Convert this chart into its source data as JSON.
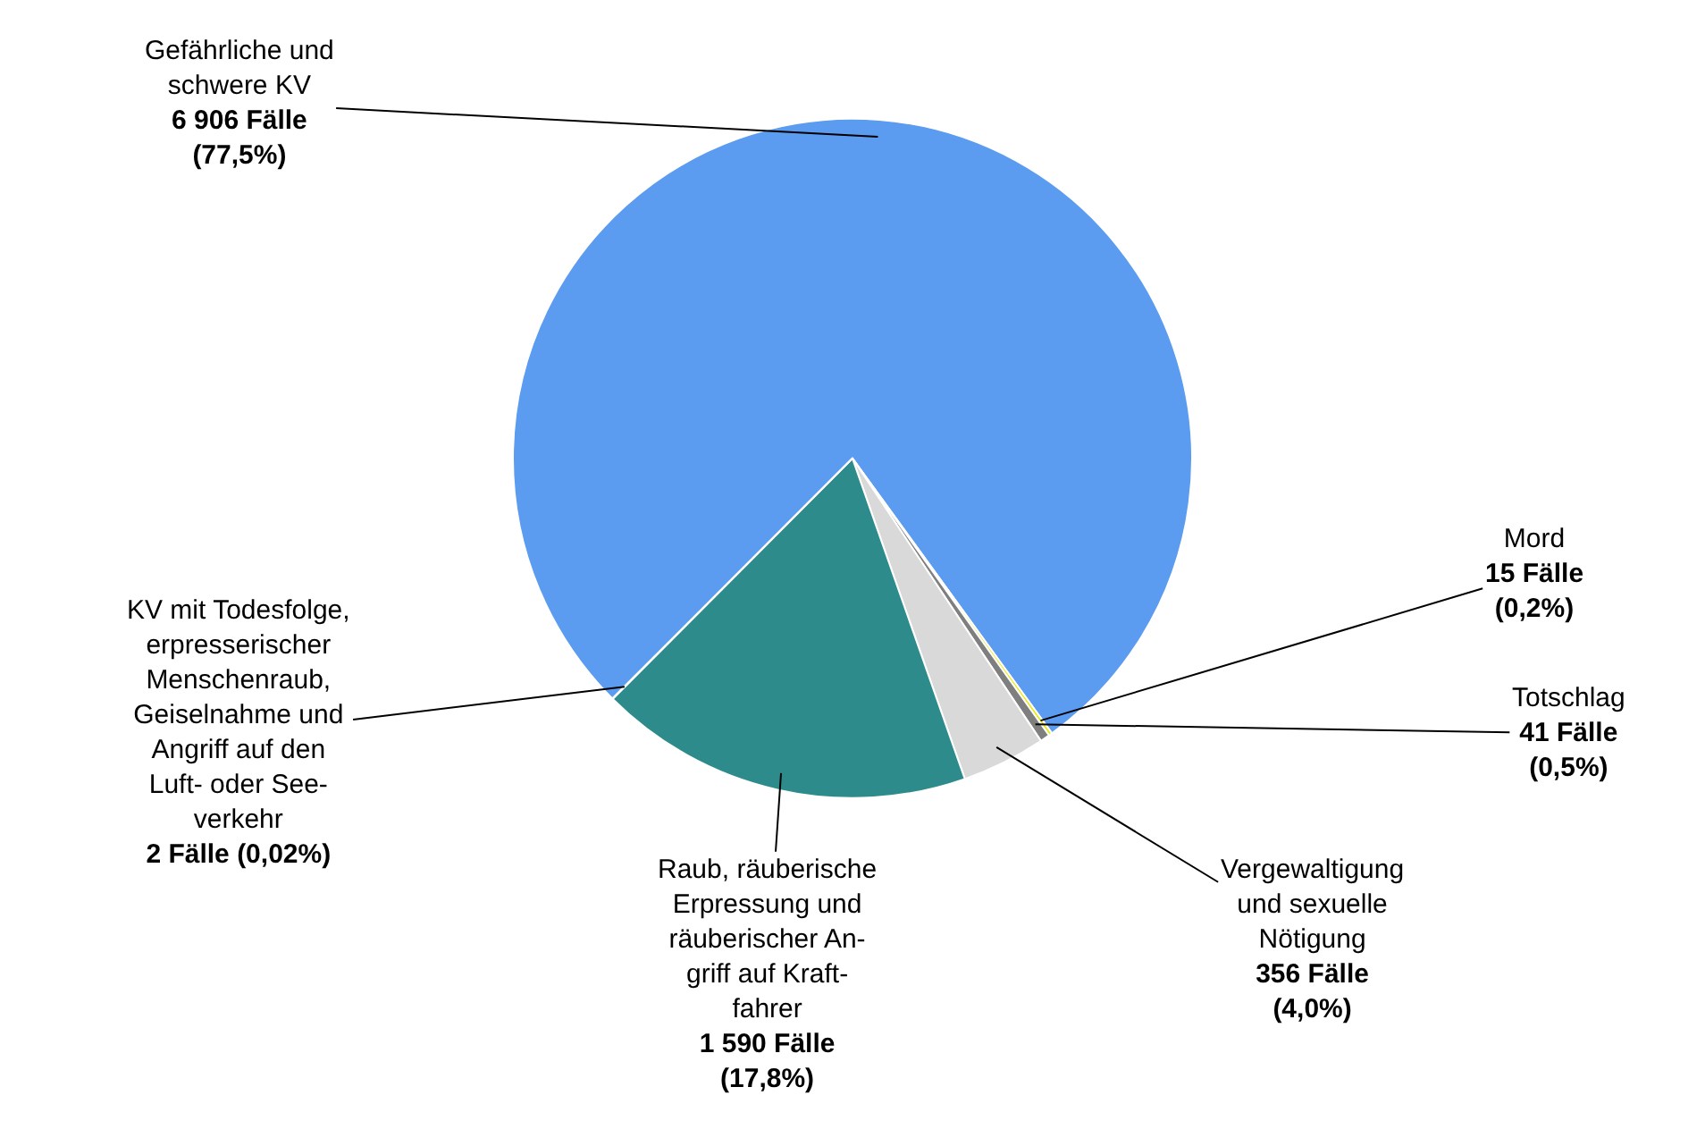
{
  "chart_data": {
    "type": "pie",
    "categories": [
      "Gefährliche und\nschwere KV",
      "Mord",
      "Totschlag",
      "Vergewaltigung\nund sexuelle\nNötigung",
      "Raub, räuberische\nErpressung und\nräuberischer An-\ngriff auf Kraft-\nfahrer",
      "KV mit Todesfolge,\nerpresserischer\nMenschenraub,\nGeiselnahme und\nAngriff auf den\nLuft- oder See-\nverkehr"
    ],
    "values": [
      6906,
      15,
      41,
      356,
      1590,
      2
    ],
    "value_labels": [
      "6 906 Fälle\n(77,5%)",
      "15 Fälle\n(0,2%)",
      "41 Fälle\n(0,5%)",
      "356 Fälle\n(4,0%)",
      "1 590 Fälle\n(17,8%)",
      "2 Fälle (0,02%)"
    ],
    "colors": [
      "#5b9bf0",
      "#e8e800",
      "#7f7f7f",
      "#d9d9d9",
      "#2e8b8b",
      "#b0a080"
    ],
    "legend": false
  }
}
